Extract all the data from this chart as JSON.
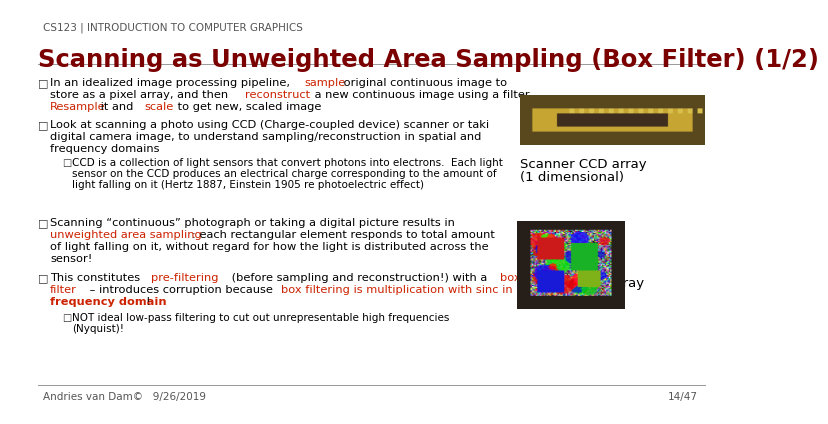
{
  "bg_color": "#ffffff",
  "header_text": "CS123 | INTRODUCTION TO COMPUTER GRAPHICS",
  "header_color": "#555555",
  "header_fontsize": 7.5,
  "title_text": "Scanning as Unweighted Area Sampling (Box Filter) (1/2)",
  "title_color": "#7B0000",
  "title_fontsize": 17.5,
  "footer_left": "Andries van Dam©   9/26/2019",
  "footer_right": "14/47",
  "footer_color": "#555555",
  "footer_fontsize": 7.5,
  "black": "#000000",
  "red": "#cc2200",
  "dark_red": "#7B0000",
  "blue_sub": "#000055",
  "gray_bullet": "#333333",
  "line_color": "#999999"
}
